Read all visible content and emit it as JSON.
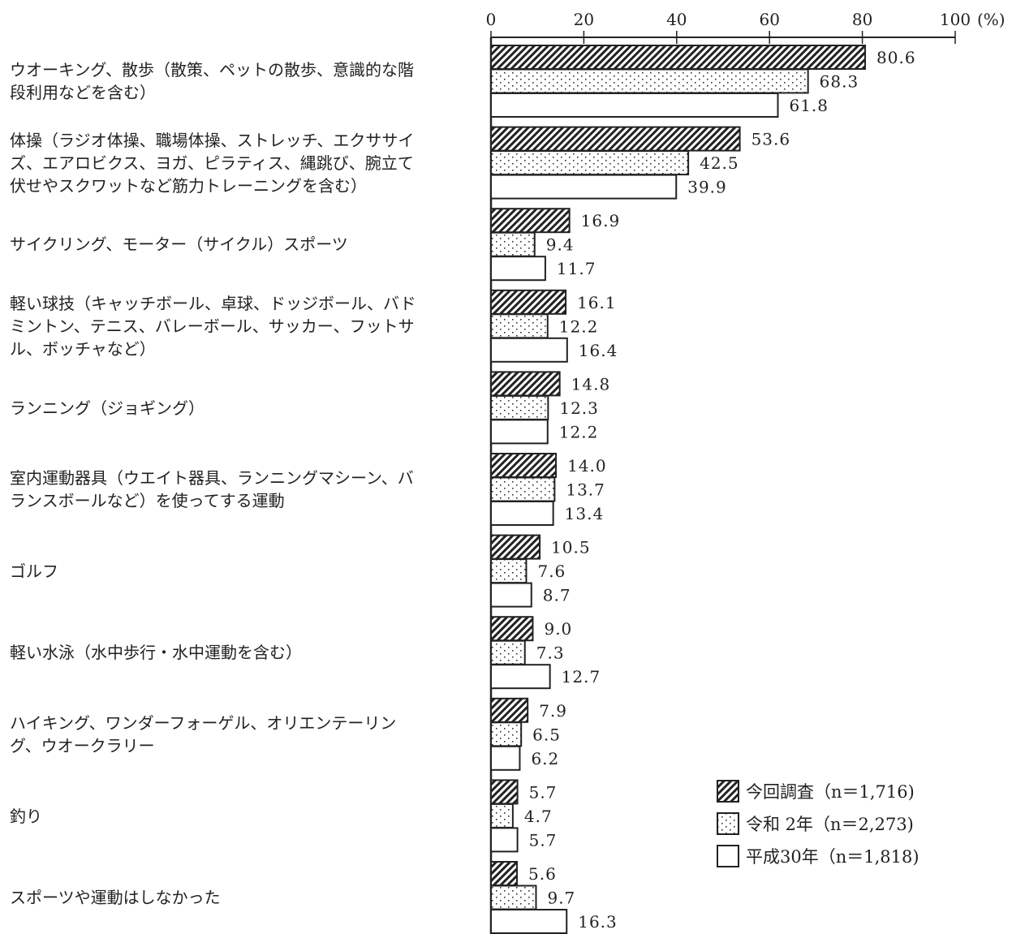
{
  "chart_data": {
    "type": "bar",
    "orientation": "horizontal",
    "xlim": [
      0,
      100
    ],
    "xticks": [
      "0",
      "20",
      "40",
      "60",
      "80",
      "100"
    ],
    "x_unit": "(%)",
    "categories": [
      "ウオーキング、散歩（散策、ペットの散歩、意識的な階\n段利用などを含む）",
      "体操（ラジオ体操、職場体操、ストレッチ、エクササイ\nズ、エアロビクス、ヨガ、ピラティス、縄跳び、腕立て\n伏せやスクワットなど筋力トレーニングを含む）",
      "サイクリング、モーター（サイクル）スポーツ",
      "軽い球技（キャッチボール、卓球、ドッジボール、バド\nミントン、テニス、バレーボール、サッカー、フットサ\nル、ボッチャなど）",
      "ランニング（ジョギング）",
      "室内運動器具（ウエイト器具、ランニングマシーン、バ\nランスボールなど）を使ってする運動",
      "ゴルフ",
      "軽い水泳（水中歩行・水中運動を含む）",
      "ハイキング、ワンダーフォーゲル、オリエンテーリン\nグ、ウオークラリー",
      "釣り",
      "スポーツや運動はしなかった"
    ],
    "series": [
      {
        "name": "今回調査（n＝1,716)",
        "pattern": "hatch",
        "values": [
          80.6,
          53.6,
          16.9,
          16.1,
          14.8,
          14.0,
          10.5,
          9.0,
          7.9,
          5.7,
          5.6
        ],
        "labels": [
          "80.6",
          "53.6",
          "16.9",
          "16.1",
          "14.8",
          "14.0",
          "10.5",
          "9.0",
          "7.9",
          "5.7",
          "5.6"
        ]
      },
      {
        "name": "令和 2年（n＝2,273)",
        "pattern": "dots",
        "values": [
          68.3,
          42.5,
          9.4,
          12.2,
          12.3,
          13.7,
          7.6,
          7.3,
          6.5,
          4.7,
          9.7
        ],
        "labels": [
          "68.3",
          "42.5",
          "9.4",
          "12.2",
          "12.3",
          "13.7",
          "7.6",
          "7.3",
          "6.5",
          "4.7",
          "9.7"
        ]
      },
      {
        "name": "平成30年（n＝1,818)",
        "pattern": "blank",
        "values": [
          61.8,
          39.9,
          11.7,
          16.4,
          12.2,
          13.4,
          8.7,
          12.7,
          6.2,
          5.7,
          16.3
        ],
        "labels": [
          "61.8",
          "39.9",
          "11.7",
          "16.4",
          "12.2",
          "13.4",
          "8.7",
          "12.7",
          "6.2",
          "5.7",
          "16.3"
        ]
      }
    ],
    "legend_position": "bottom-right",
    "colors": {
      "bar_stroke": "#222222",
      "fill": "#ffffff",
      "pattern": "#222222"
    }
  }
}
